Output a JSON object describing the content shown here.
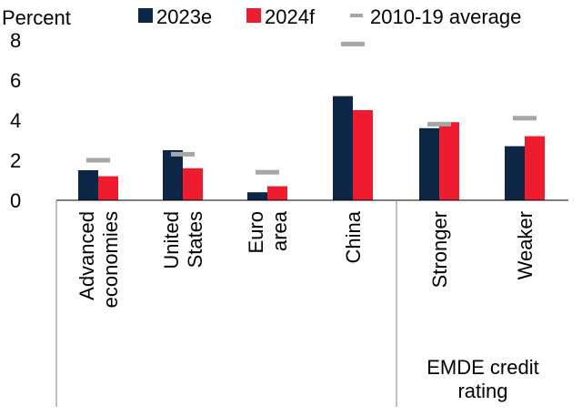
{
  "chart_data": {
    "type": "bar",
    "ylabel": "Percent",
    "ylim": [
      0,
      8
    ],
    "yticks": [
      0,
      2,
      4,
      6,
      8
    ],
    "grid": false,
    "legend_position": "top",
    "categories": [
      [
        "Advanced",
        "economies"
      ],
      [
        "United",
        "States"
      ],
      [
        "Euro",
        "area"
      ],
      [
        "China"
      ],
      [
        "Stronger"
      ],
      [
        "Weaker"
      ]
    ],
    "group_label": [
      "EMDE credit",
      "rating"
    ],
    "series": [
      {
        "name": "2023e",
        "color": "#0d2646",
        "values": [
          1.5,
          2.5,
          0.4,
          5.2,
          3.6,
          2.7
        ]
      },
      {
        "name": "2024f",
        "color": "#ee1c2e",
        "values": [
          1.2,
          1.6,
          0.7,
          4.5,
          3.9,
          3.2
        ]
      }
    ],
    "average": {
      "name": "2010-19 average",
      "color": "#a6a6a6",
      "values": [
        2.0,
        2.3,
        1.4,
        7.8,
        3.8,
        4.1
      ]
    }
  }
}
